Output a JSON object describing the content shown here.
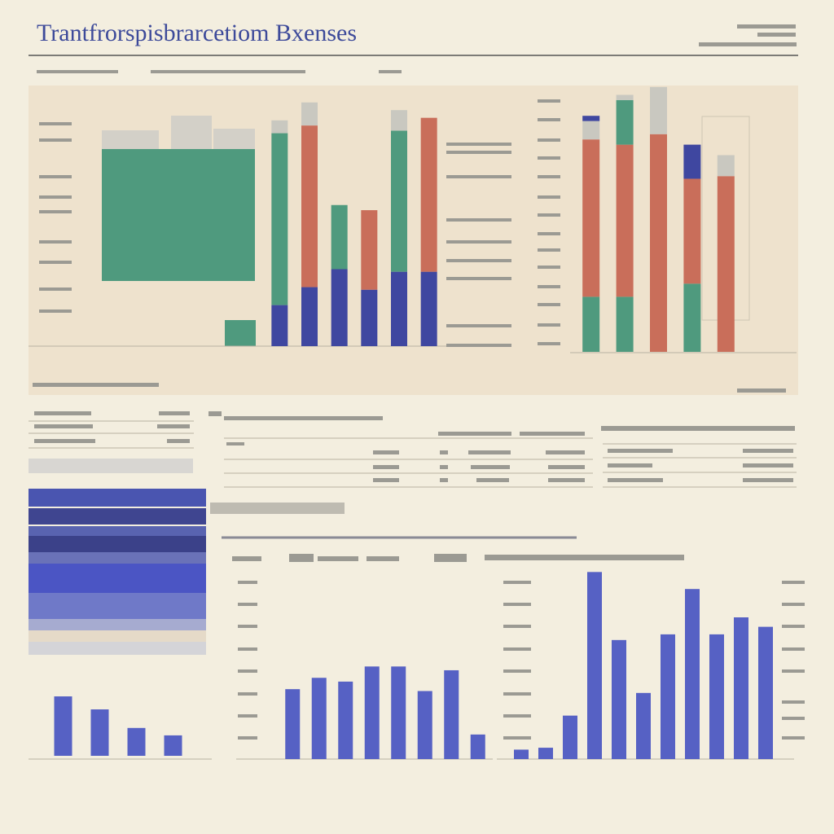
{
  "title": "Trantfrorspisbrarcetiom Bxenses",
  "chart_data": [
    {
      "type": "bar",
      "stacked": true,
      "ylim": [
        0,
        100
      ],
      "series": [
        {
          "color": "#3f47a0",
          "values": [
            16,
            23,
            30,
            22,
            29,
            29
          ]
        },
        {
          "color": "#4f9a7e",
          "values": [
            67,
            null,
            25,
            null,
            55,
            null
          ]
        },
        {
          "color": "#c96e5a",
          "values": [
            null,
            63,
            null,
            31,
            null,
            60
          ]
        },
        {
          "color": "#c9c8c0",
          "values": [
            5,
            9,
            null,
            null,
            8,
            null
          ]
        }
      ]
    },
    {
      "type": "bar",
      "stacked": true,
      "ylim": [
        0,
        100
      ],
      "series": [
        {
          "color": "#4f9a7e",
          "values": [
            21,
            21,
            null,
            26,
            null
          ]
        },
        {
          "color": "#c96e5a",
          "values": [
            60,
            58,
            83,
            40,
            67
          ]
        },
        {
          "color": "#4f9a7e",
          "values": [
            null,
            17,
            null,
            null,
            null
          ]
        },
        {
          "color": "#c9c8c0",
          "values": [
            7,
            2,
            18,
            null,
            8
          ]
        },
        {
          "color": "#3f47a0",
          "values": [
            2,
            null,
            null,
            13,
            null
          ]
        }
      ]
    },
    {
      "type": "bar",
      "ylim": [
        0,
        100
      ],
      "series": [
        {
          "color": "#5661c4",
          "values": [
            32,
            25,
            15,
            11
          ]
        }
      ]
    },
    {
      "type": "bar",
      "ylim": [
        0,
        100
      ],
      "series": [
        {
          "color": "#5661c4",
          "values": [
            37,
            43,
            41,
            49,
            49,
            36,
            47,
            13
          ]
        }
      ]
    },
    {
      "type": "bar",
      "ylim": [
        0,
        100
      ],
      "series": [
        {
          "color": "#5661c4",
          "values": [
            5,
            6,
            23,
            99,
            63,
            35,
            66,
            90,
            66,
            75,
            70
          ]
        }
      ]
    }
  ]
}
